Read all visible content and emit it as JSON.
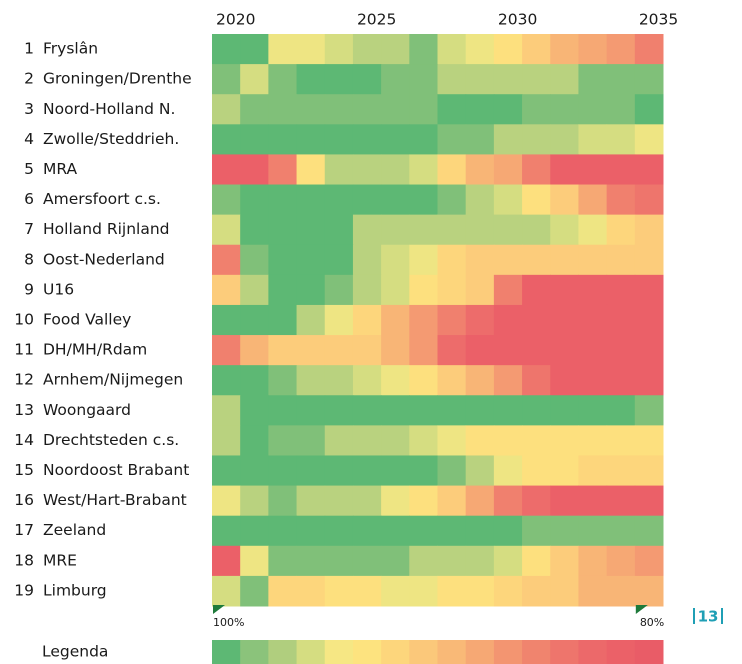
{
  "chart_data": {
    "type": "heatmap",
    "x": [
      2020,
      2021,
      2022,
      2023,
      2024,
      2025,
      2026,
      2027,
      2028,
      2029,
      2030,
      2031,
      2032,
      2033,
      2034,
      2035
    ],
    "xticks": [
      2020,
      2025,
      2030,
      2035
    ],
    "row_numbers": [
      1,
      2,
      3,
      4,
      5,
      6,
      7,
      8,
      9,
      10,
      11,
      12,
      13,
      14,
      15,
      16,
      17,
      18,
      19
    ],
    "series": [
      {
        "name": "Fryslân",
        "values": [
          100,
          100,
          95,
          95,
          96,
          97,
          97,
          99,
          96,
          95,
          93,
          91,
          89,
          88,
          87,
          85
        ]
      },
      {
        "name": "Groningen/Drenthe",
        "values": [
          99,
          96,
          99,
          100,
          100,
          100,
          99,
          99,
          97,
          97,
          97,
          97,
          97,
          99,
          99,
          99
        ]
      },
      {
        "name": "Noord-Holland N.",
        "values": [
          97,
          99,
          99,
          99,
          99,
          99,
          99,
          99,
          100,
          100,
          100,
          99,
          99,
          99,
          99,
          100
        ]
      },
      {
        "name": "Zwolle/Steddrieh.",
        "values": [
          100,
          100,
          100,
          100,
          100,
          100,
          100,
          100,
          99,
          99,
          97,
          97,
          97,
          96,
          96,
          95
        ]
      },
      {
        "name": "MRA",
        "values": [
          81,
          81,
          85,
          93,
          97,
          97,
          97,
          96,
          92,
          89,
          88,
          85,
          81,
          81,
          81,
          81
        ]
      },
      {
        "name": "Amersfoort c.s.",
        "values": [
          99,
          100,
          100,
          100,
          100,
          100,
          100,
          100,
          99,
          97,
          96,
          93,
          91,
          88,
          85,
          84
        ]
      },
      {
        "name": "Holland Rijnland",
        "values": [
          96,
          100,
          100,
          100,
          100,
          97,
          97,
          97,
          97,
          97,
          97,
          97,
          96,
          95,
          92,
          91
        ]
      },
      {
        "name": "Oost-Nederland",
        "values": [
          85,
          99,
          100,
          100,
          100,
          97,
          96,
          95,
          92,
          91,
          91,
          91,
          91,
          91,
          91,
          91
        ]
      },
      {
        "name": "U16",
        "values": [
          91,
          97,
          100,
          100,
          99,
          97,
          96,
          93,
          92,
          91,
          85,
          81,
          81,
          81,
          81,
          81
        ]
      },
      {
        "name": "Food Valley",
        "values": [
          100,
          100,
          100,
          97,
          95,
          92,
          89,
          87,
          85,
          83,
          81,
          81,
          81,
          81,
          81,
          81
        ]
      },
      {
        "name": "DH/MH/Rdam",
        "values": [
          85,
          89,
          91,
          91,
          91,
          91,
          89,
          87,
          83,
          81,
          81,
          81,
          81,
          81,
          81,
          81
        ]
      },
      {
        "name": "Arnhem/Nijmegen",
        "values": [
          100,
          100,
          99,
          97,
          97,
          96,
          95,
          93,
          91,
          89,
          87,
          84,
          81,
          81,
          81,
          81
        ]
      },
      {
        "name": "Woongaard",
        "values": [
          97,
          100,
          100,
          100,
          100,
          100,
          100,
          100,
          100,
          100,
          100,
          100,
          100,
          100,
          100,
          99
        ]
      },
      {
        "name": "Drechtsteden c.s.",
        "values": [
          97,
          100,
          99,
          99,
          97,
          97,
          97,
          96,
          95,
          93,
          93,
          93,
          93,
          93,
          93,
          93
        ]
      },
      {
        "name": "Noordoost Brabant",
        "values": [
          100,
          100,
          100,
          100,
          100,
          100,
          100,
          100,
          99,
          97,
          95,
          93,
          93,
          92,
          92,
          92
        ]
      },
      {
        "name": "West/Hart-Brabant",
        "values": [
          95,
          97,
          99,
          97,
          97,
          97,
          95,
          93,
          91,
          88,
          85,
          83,
          81,
          81,
          81,
          81
        ]
      },
      {
        "name": "Zeeland",
        "values": [
          100,
          100,
          100,
          100,
          100,
          100,
          100,
          100,
          100,
          100,
          100,
          99,
          99,
          99,
          99,
          99
        ]
      },
      {
        "name": "MRE",
        "values": [
          81,
          95,
          99,
          99,
          99,
          99,
          99,
          97,
          97,
          97,
          96,
          93,
          91,
          89,
          88,
          87
        ]
      },
      {
        "name": "Limburg",
        "values": [
          96,
          99,
          92,
          92,
          93,
          93,
          95,
          95,
          93,
          93,
          92,
          91,
          91,
          89,
          89,
          89
        ]
      }
    ],
    "colorscale": [
      "#5db874",
      "#8bc37b",
      "#b0ce7e",
      "#d5dd81",
      "#f6e784",
      "#fde37f",
      "#fdd67c",
      "#fbc87a",
      "#f9b977",
      "#f6a874",
      "#f39571",
      "#f0846e",
      "#ee756c",
      "#ec696a",
      "#eb6168",
      "#e95c67"
    ],
    "legend": {
      "title": "Legenda",
      "min": {
        "value": 100,
        "label": "100%"
      },
      "max": {
        "value": 80,
        "label": "80%"
      }
    },
    "page_number": 13
  }
}
